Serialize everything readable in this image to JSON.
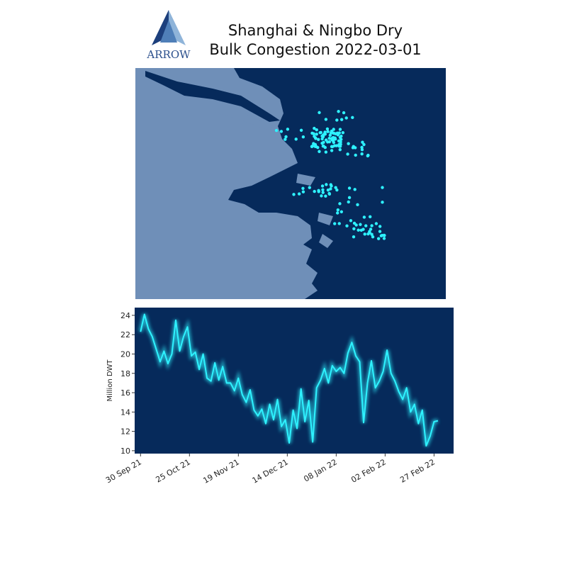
{
  "logo": "ARROW",
  "chart_data": {
    "type": "line",
    "title": "Shanghai & Ningbo Dry\nBulk Congestion 2022-03-01",
    "ylabel": "Million DWT",
    "color": "#2ef2ff",
    "x": [
      "2021-09-30",
      "2021-10-02",
      "2021-10-04",
      "2021-10-06",
      "2021-10-08",
      "2021-10-10",
      "2021-10-12",
      "2021-10-14",
      "2021-10-16",
      "2021-10-18",
      "2021-10-20",
      "2021-10-22",
      "2021-10-24",
      "2021-10-26",
      "2021-10-28",
      "2021-10-30",
      "2021-11-01",
      "2021-11-03",
      "2021-11-05",
      "2021-11-07",
      "2021-11-09",
      "2021-11-11",
      "2021-11-13",
      "2021-11-15",
      "2021-11-17",
      "2021-11-19",
      "2021-11-21",
      "2021-11-23",
      "2021-11-25",
      "2021-11-27",
      "2021-11-29",
      "2021-12-01",
      "2021-12-03",
      "2021-12-05",
      "2021-12-07",
      "2021-12-09",
      "2021-12-11",
      "2021-12-13",
      "2021-12-15",
      "2021-12-17",
      "2021-12-19",
      "2021-12-21",
      "2021-12-23",
      "2021-12-25",
      "2021-12-27",
      "2021-12-29",
      "2021-12-31",
      "2022-01-02",
      "2022-01-04",
      "2022-01-06",
      "2022-01-08",
      "2022-01-10",
      "2022-01-12",
      "2022-01-14",
      "2022-01-16",
      "2022-01-18",
      "2022-01-20",
      "2022-01-22",
      "2022-01-24",
      "2022-01-26",
      "2022-01-28",
      "2022-01-30",
      "2022-02-01",
      "2022-02-03",
      "2022-02-05",
      "2022-02-07",
      "2022-02-09",
      "2022-02-11",
      "2022-02-13",
      "2022-02-15",
      "2022-02-17",
      "2022-02-19",
      "2022-02-21",
      "2022-02-23",
      "2022-02-25",
      "2022-02-27",
      "2022-03-01"
    ],
    "values": [
      22.3,
      24.1,
      22.6,
      21.8,
      20.5,
      19.2,
      20.3,
      19.0,
      20.0,
      23.5,
      20.3,
      21.8,
      22.8,
      19.8,
      20.2,
      18.4,
      20.0,
      17.5,
      17.2,
      19.1,
      17.3,
      18.7,
      17.0,
      17.0,
      16.2,
      17.5,
      15.8,
      15.0,
      16.3,
      14.2,
      13.6,
      14.3,
      12.8,
      14.8,
      13.2,
      15.3,
      12.5,
      13.2,
      10.8,
      14.2,
      12.3,
      16.4,
      13.0,
      15.2,
      10.9,
      16.5,
      17.3,
      18.5,
      17.0,
      18.8,
      18.2,
      18.6,
      18.0,
      20.1,
      21.2,
      19.8,
      19.2,
      12.9,
      17.0,
      19.3,
      16.5,
      17.2,
      18.2,
      20.4,
      18.0,
      17.2,
      16.1,
      15.3,
      16.5,
      14.0,
      14.8,
      12.8,
      14.2,
      10.5,
      11.5,
      13.0,
      13.1
    ],
    "xlim": [
      "2021-09-27",
      "2022-03-09"
    ],
    "xticks": [
      {
        "value": "2021-09-30",
        "label": "30 Sep 21"
      },
      {
        "value": "2021-10-25",
        "label": "25 Oct 21"
      },
      {
        "value": "2021-11-19",
        "label": "19 Nov 21"
      },
      {
        "value": "2021-12-14",
        "label": "14 Dec 21"
      },
      {
        "value": "2022-01-08",
        "label": "08 Jan 22"
      },
      {
        "value": "2022-02-02",
        "label": "02 Feb 22"
      },
      {
        "value": "2022-02-27",
        "label": "27 Feb 22"
      }
    ],
    "ylim": [
      9.7,
      24.8
    ],
    "yticks": [
      10,
      12,
      14,
      16,
      18,
      20,
      22,
      24
    ]
  }
}
